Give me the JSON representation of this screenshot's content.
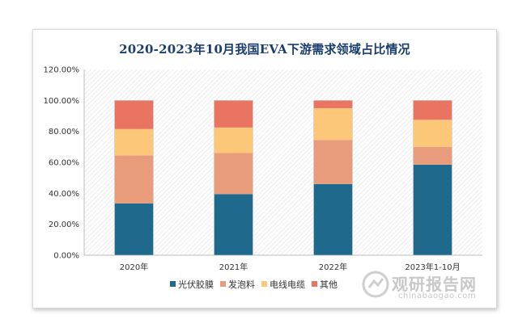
{
  "chart_data": {
    "type": "bar",
    "stacked": true,
    "title": "2020-2023年10月我国EVA下游需求领域占比情况",
    "categories": [
      "2020年",
      "2021年",
      "2022年",
      "2023年1-10月"
    ],
    "series": [
      {
        "name": "光伏胶膜",
        "color": "#1f6a8c",
        "values": [
          33.5,
          39.5,
          46.0,
          58.5
        ]
      },
      {
        "name": "发泡料",
        "color": "#e89c7c",
        "values": [
          31.0,
          26.5,
          28.5,
          11.5
        ]
      },
      {
        "name": "电线电缆",
        "color": "#fdc779",
        "values": [
          17.0,
          16.5,
          20.5,
          17.5
        ]
      },
      {
        "name": "其他",
        "color": "#e87461",
        "values": [
          18.5,
          17.5,
          5.0,
          12.5
        ]
      }
    ],
    "ylim": [
      0,
      120
    ],
    "yticks": [
      "0.00%",
      "20.00%",
      "40.00%",
      "60.00%",
      "80.00%",
      "100.00%",
      "120.00%"
    ],
    "ytick_values": [
      0,
      20,
      40,
      60,
      80,
      100,
      120
    ],
    "legend_position": "bottom",
    "plot_background": "hatched"
  },
  "watermark": {
    "brand": "观研报告网",
    "url": "chinabaogao.com"
  }
}
